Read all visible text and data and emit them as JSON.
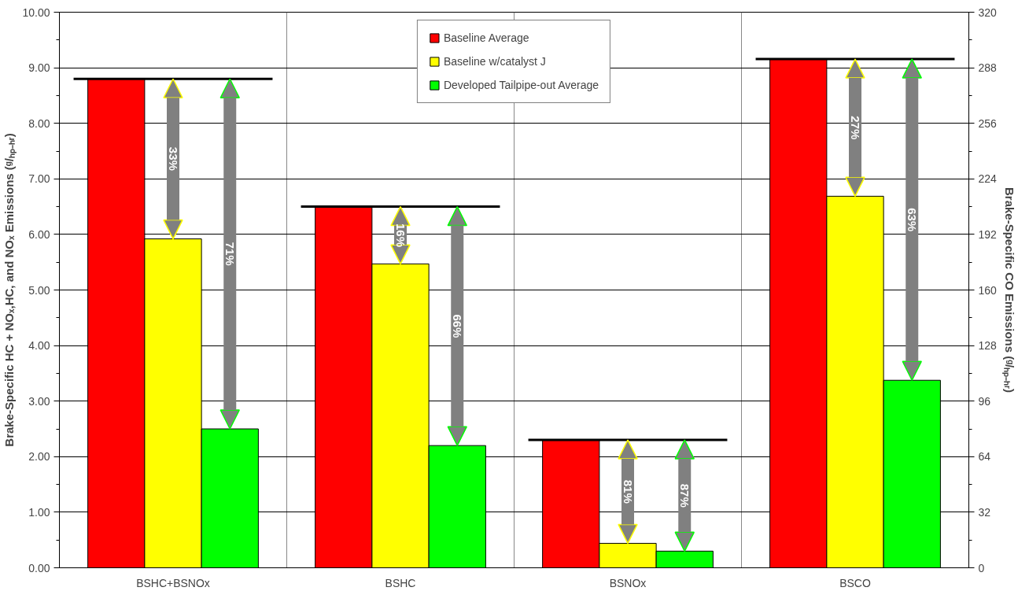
{
  "chart_data": {
    "type": "bar",
    "ylabel": "Brake-Specific HC + NOₓ,HC, and NOₓ Emissions (ᵍ/ₕₚ₋ₕᵣ)",
    "y2label": "Brake-Specific CO Emissions (ᵍ/ₕₚ₋ₕᵣ)",
    "categories": [
      "BSHC+BSNOx",
      "BSHC",
      "BSNOx",
      "BSCO"
    ],
    "series": [
      {
        "name": "Baseline Average",
        "color": "#ff0000",
        "values": [
          8.8,
          6.5,
          2.3,
          null
        ]
      },
      {
        "name": "Baseline w/catalyst J",
        "color": "#ffff00",
        "values": [
          5.92,
          5.47,
          0.44,
          null
        ]
      },
      {
        "name": "Developed Tailpipe-out Average",
        "color": "#00ff00",
        "values": [
          2.5,
          2.2,
          0.3,
          null
        ]
      },
      {
        "color": "#ff0000",
        "axis": "y2",
        "values": [
          null,
          null,
          null,
          293
        ]
      },
      {
        "color": "#ffff00",
        "axis": "y2",
        "values": [
          null,
          null,
          null,
          214
        ]
      },
      {
        "color": "#00ff00",
        "axis": "y2",
        "values": [
          null,
          null,
          null,
          108
        ]
      }
    ],
    "ylim": [
      0,
      10
    ],
    "yticks": [
      {
        "value": 0,
        "label": "0.00"
      },
      {
        "value": 1,
        "label": "1.00"
      },
      {
        "value": 2,
        "label": "2.00"
      },
      {
        "value": 3,
        "label": "3.00"
      },
      {
        "value": 4,
        "label": "4.00"
      },
      {
        "value": 5,
        "label": "5.00"
      },
      {
        "value": 6,
        "label": "6.00"
      },
      {
        "value": 7,
        "label": "7.00"
      },
      {
        "value": 8,
        "label": "8.00"
      },
      {
        "value": 9,
        "label": "9.00"
      },
      {
        "value": 10,
        "label": "10.00"
      }
    ],
    "y2lim": [
      0,
      320
    ],
    "y2ticks": [
      0,
      32,
      64,
      96,
      128,
      160,
      192,
      224,
      256,
      288,
      320
    ],
    "annotations": [
      "33%",
      "71%",
      "16%",
      "66%",
      "81%",
      "87%",
      "27%",
      "63%"
    ],
    "ref_lines": [
      {
        "axis": "y",
        "value": 8.8,
        "color": "#000000"
      },
      {
        "axis": "y",
        "value": 6.5,
        "color": "#000000"
      },
      {
        "axis": "y",
        "value": 2.3,
        "color": "#000000"
      },
      {
        "axis": "y2",
        "value": 293,
        "color": "#000000"
      }
    ],
    "grid": true,
    "legend": "top"
  }
}
